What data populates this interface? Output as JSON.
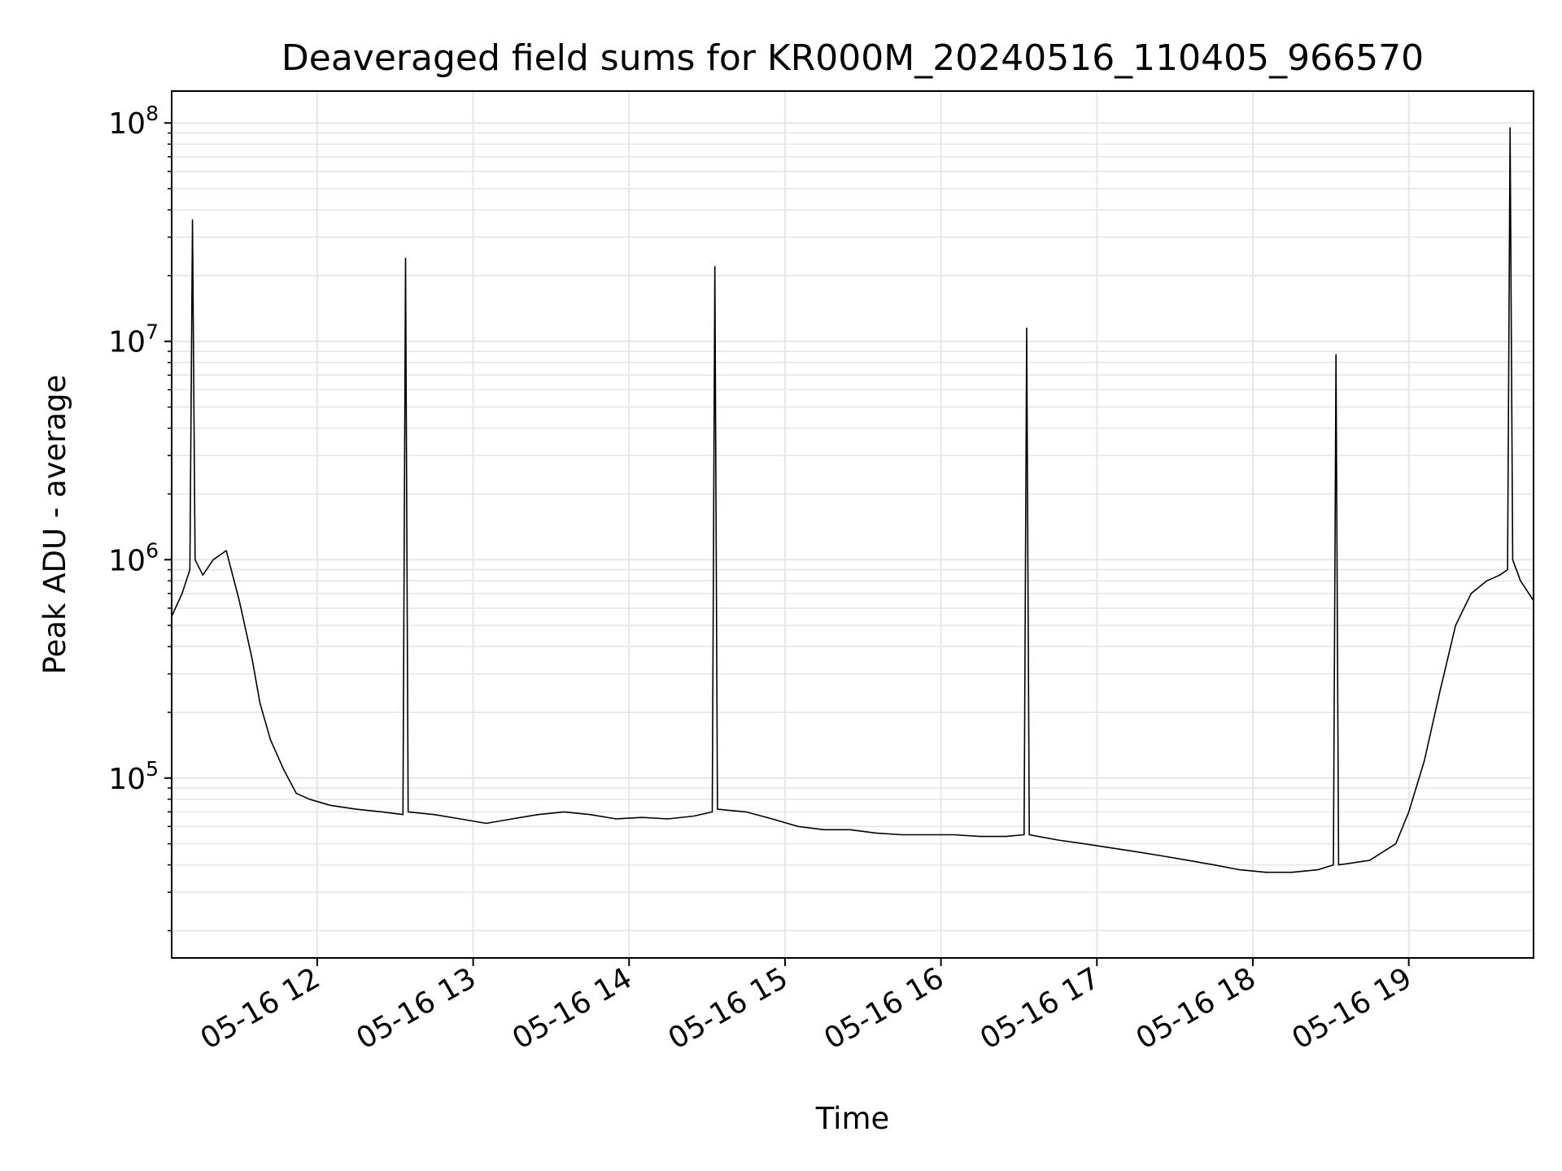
{
  "chart_data": {
    "type": "line",
    "title": "Deaveraged field sums for KR000M_20240516_110405_966570",
    "xlabel": "Time",
    "ylabel": "Peak ADU - average",
    "yscale": "log",
    "xlim": [
      "2024-05-16T11:04",
      "2024-05-16T19:48"
    ],
    "ylim": [
      15000,
      140000000
    ],
    "grid": true,
    "x_ticks": [
      {
        "time": "2024-05-16T12:00",
        "label": "05-16 12"
      },
      {
        "time": "2024-05-16T13:00",
        "label": "05-16 13"
      },
      {
        "time": "2024-05-16T14:00",
        "label": "05-16 14"
      },
      {
        "time": "2024-05-16T15:00",
        "label": "05-16 15"
      },
      {
        "time": "2024-05-16T16:00",
        "label": "05-16 16"
      },
      {
        "time": "2024-05-16T17:00",
        "label": "05-16 17"
      },
      {
        "time": "2024-05-16T18:00",
        "label": "05-16 18"
      },
      {
        "time": "2024-05-16T19:00",
        "label": "05-16 19"
      }
    ],
    "y_ticks": [
      {
        "value": 100000,
        "base": "10",
        "exp": "5"
      },
      {
        "value": 1000000,
        "base": "10",
        "exp": "6"
      },
      {
        "value": 10000000,
        "base": "10",
        "exp": "7"
      },
      {
        "value": 100000000,
        "base": "10",
        "exp": "8"
      }
    ],
    "series": [
      {
        "color": "#000000",
        "x": [
          "2024-05-16T11:04",
          "2024-05-16T11:08",
          "2024-05-16T11:11",
          "2024-05-16T11:12",
          "2024-05-16T11:13",
          "2024-05-16T11:16",
          "2024-05-16T11:20",
          "2024-05-16T11:25",
          "2024-05-16T11:30",
          "2024-05-16T11:35",
          "2024-05-16T11:38",
          "2024-05-16T11:42",
          "2024-05-16T11:47",
          "2024-05-16T11:52",
          "2024-05-16T11:57",
          "2024-05-16T12:05",
          "2024-05-16T12:15",
          "2024-05-16T12:25",
          "2024-05-16T12:33",
          "2024-05-16T12:34",
          "2024-05-16T12:35",
          "2024-05-16T12:45",
          "2024-05-16T12:55",
          "2024-05-16T13:05",
          "2024-05-16T13:15",
          "2024-05-16T13:25",
          "2024-05-16T13:35",
          "2024-05-16T13:45",
          "2024-05-16T13:55",
          "2024-05-16T14:05",
          "2024-05-16T14:15",
          "2024-05-16T14:25",
          "2024-05-16T14:32",
          "2024-05-16T14:33",
          "2024-05-16T14:34",
          "2024-05-16T14:45",
          "2024-05-16T14:55",
          "2024-05-16T15:05",
          "2024-05-16T15:15",
          "2024-05-16T15:25",
          "2024-05-16T15:35",
          "2024-05-16T15:45",
          "2024-05-16T15:55",
          "2024-05-16T16:05",
          "2024-05-16T16:15",
          "2024-05-16T16:25",
          "2024-05-16T16:32",
          "2024-05-16T16:33",
          "2024-05-16T16:34",
          "2024-05-16T16:45",
          "2024-05-16T16:55",
          "2024-05-16T17:05",
          "2024-05-16T17:15",
          "2024-05-16T17:25",
          "2024-05-16T17:35",
          "2024-05-16T17:45",
          "2024-05-16T17:55",
          "2024-05-16T18:05",
          "2024-05-16T18:15",
          "2024-05-16T18:25",
          "2024-05-16T18:31",
          "2024-05-16T18:32",
          "2024-05-16T18:33",
          "2024-05-16T18:45",
          "2024-05-16T18:55",
          "2024-05-16T19:00",
          "2024-05-16T19:06",
          "2024-05-16T19:12",
          "2024-05-16T19:18",
          "2024-05-16T19:24",
          "2024-05-16T19:30",
          "2024-05-16T19:35",
          "2024-05-16T19:38",
          "2024-05-16T19:39",
          "2024-05-16T19:40",
          "2024-05-16T19:43",
          "2024-05-16T19:48"
        ],
        "y": [
          550000,
          700000,
          900000,
          36000000,
          1000000,
          850000,
          1000000,
          1100000,
          650000,
          350000,
          220000,
          150000,
          110000,
          85000,
          80000,
          75000,
          72000,
          70000,
          68000,
          24000000,
          70000,
          68000,
          65000,
          62000,
          65000,
          68000,
          70000,
          68000,
          65000,
          66000,
          65000,
          67000,
          70000,
          22000000,
          72000,
          70000,
          65000,
          60000,
          58000,
          58000,
          56000,
          55000,
          55000,
          55000,
          54000,
          54000,
          55000,
          11500000,
          55000,
          52000,
          50000,
          48000,
          46000,
          44000,
          42000,
          40000,
          38000,
          37000,
          37000,
          38000,
          40000,
          8700000,
          40000,
          42000,
          50000,
          70000,
          120000,
          250000,
          500000,
          700000,
          800000,
          850000,
          900000,
          95000000,
          1000000,
          800000,
          650000
        ]
      }
    ]
  }
}
